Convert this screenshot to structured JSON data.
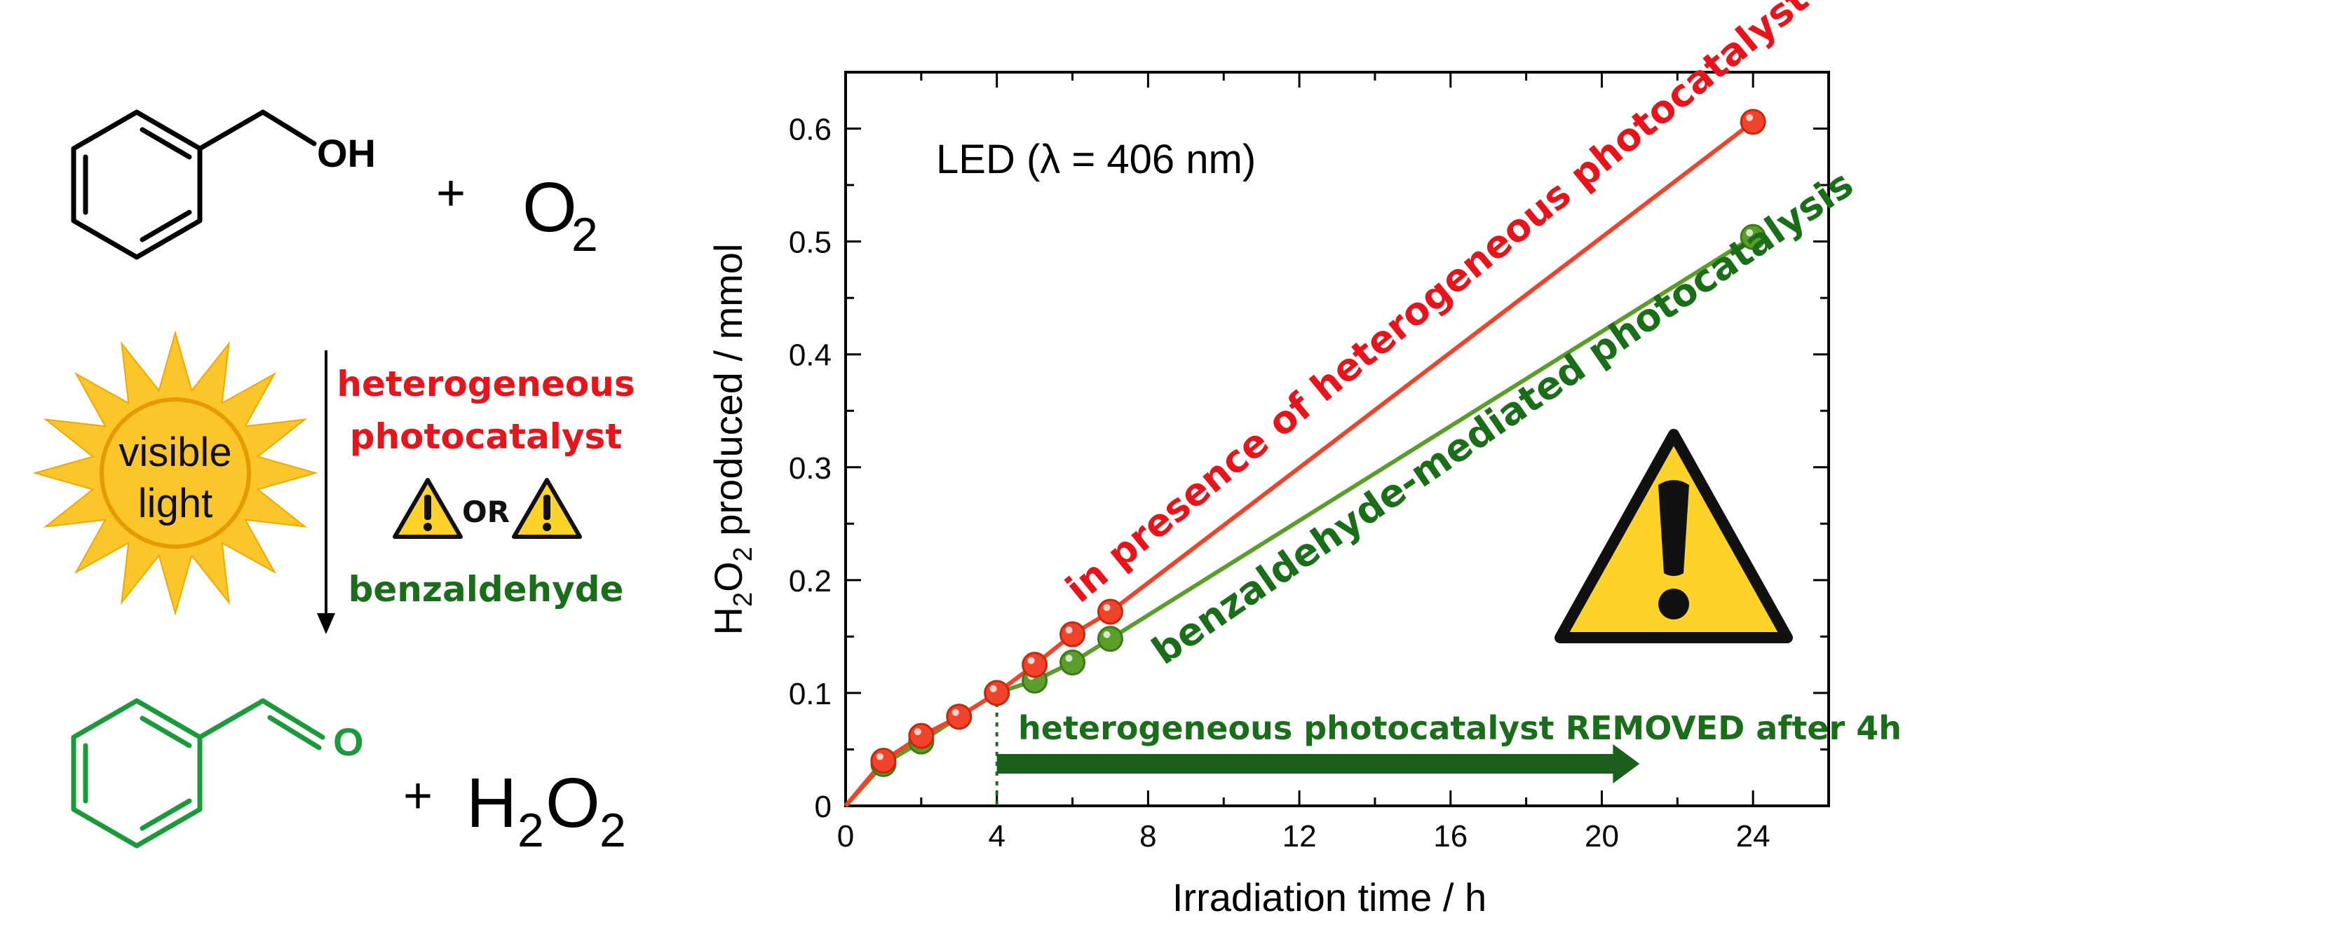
{
  "scheme": {
    "reactant": {
      "oh_label": "OH",
      "plus": "+",
      "o2": "O",
      "o2_sub": "2"
    },
    "sun_label_line1": "visible",
    "sun_label_line2": "light",
    "catalyst_line1": "heterogeneous",
    "catalyst_line2": "photocatalyst",
    "or_label": "OR",
    "alt_label": "benzaldehyde",
    "product": {
      "o_label": "O",
      "plus": "+",
      "h2o2_h": "H",
      "h2o2_sub1": "2",
      "h2o2_o": "O",
      "h2o2_sub2": "2"
    }
  },
  "colors": {
    "red_text": "#e8141b",
    "green_text": "#1a6e1a",
    "green_structure": "#1a9a3a",
    "series_red": "#f0432a",
    "series_green": "#5a9e2a",
    "sun_fill": "#fbc62a",
    "warning_fill": "#fdd32a"
  },
  "chart_data": {
    "type": "line",
    "annotation_led": "LED (λ = 406 nm)",
    "xlabel": "Irradiation time / h",
    "ylabel_parts": {
      "h": "H",
      "sub1": "2",
      "o": "O",
      "sub2": "2",
      "rest": " produced / mmol"
    },
    "xlim": [
      0,
      26
    ],
    "ylim": [
      0,
      0.65
    ],
    "x_ticks": [
      "0",
      "4",
      "8",
      "12",
      "16",
      "20",
      "24"
    ],
    "y_ticks": [
      "0",
      "0.1",
      "0.2",
      "0.3",
      "0.4",
      "0.5",
      "0.6"
    ],
    "series": [
      {
        "name": "in presence of heterogeneous photocatalyst",
        "color": "#f0432a",
        "x": [
          0,
          1,
          2,
          3,
          4,
          5,
          6,
          7,
          24
        ],
        "y": [
          0,
          0.04,
          0.062,
          0.079,
          0.1,
          0.125,
          0.152,
          0.172,
          0.606
        ]
      },
      {
        "name": "benzaldehyde-mediated photocatalysis",
        "color": "#5a9e2a",
        "x": [
          0,
          1,
          2,
          3,
          4,
          5,
          6,
          7,
          24
        ],
        "y": [
          0,
          0.037,
          0.057,
          0.079,
          0.1,
          0.111,
          0.127,
          0.148,
          0.504
        ]
      }
    ],
    "removal_annotation": "heterogeneous  photocatalyst REMOVED after 4h",
    "removal_x": 4,
    "removal_arrow_end_x": 21
  }
}
